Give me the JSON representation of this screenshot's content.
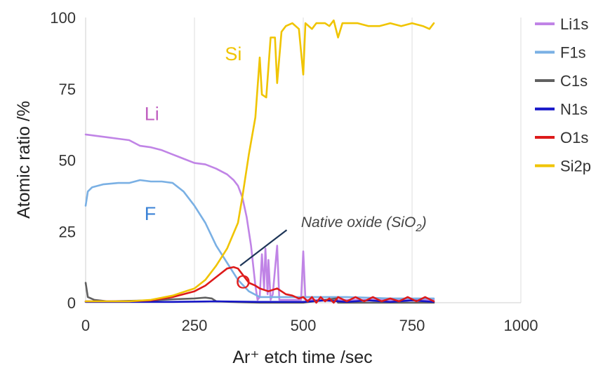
{
  "chart_data": {
    "type": "line",
    "title": "",
    "xlabel": "Ar⁺ etch time /sec",
    "ylabel": "Atomic ratio /%",
    "xlim": [
      0,
      1000
    ],
    "ylim": [
      0,
      100
    ],
    "xticks": [
      "0",
      "250",
      "500",
      "750",
      "1000"
    ],
    "yticks": [
      "0",
      "25",
      "50",
      "75",
      "100"
    ],
    "grid": "vertical",
    "legend_position": "right",
    "series": [
      {
        "name": "Li1s",
        "color": "#c084e6",
        "points": [
          [
            0,
            59
          ],
          [
            25,
            58.5
          ],
          [
            50,
            58
          ],
          [
            75,
            57.5
          ],
          [
            100,
            57
          ],
          [
            125,
            55
          ],
          [
            150,
            54.5
          ],
          [
            175,
            53.5
          ],
          [
            200,
            52
          ],
          [
            225,
            50.5
          ],
          [
            250,
            49
          ],
          [
            275,
            48.5
          ],
          [
            300,
            47
          ],
          [
            325,
            45
          ],
          [
            340,
            43
          ],
          [
            350,
            41
          ],
          [
            360,
            37
          ],
          [
            370,
            30
          ],
          [
            380,
            20
          ],
          [
            390,
            6
          ],
          [
            395,
            1
          ],
          [
            400,
            2
          ],
          [
            405,
            17
          ],
          [
            410,
            5
          ],
          [
            413,
            19
          ],
          [
            418,
            3
          ],
          [
            420,
            15
          ],
          [
            425,
            1
          ],
          [
            430,
            3
          ],
          [
            440,
            20
          ],
          [
            445,
            1
          ],
          [
            450,
            1
          ],
          [
            475,
            1
          ],
          [
            495,
            1
          ],
          [
            500,
            18
          ],
          [
            505,
            1
          ],
          [
            550,
            1
          ],
          [
            600,
            1
          ],
          [
            700,
            1
          ],
          [
            800,
            1
          ]
        ]
      },
      {
        "name": "F1s",
        "color": "#7ab0e4",
        "points": [
          [
            0,
            34
          ],
          [
            5,
            39
          ],
          [
            15,
            40.5
          ],
          [
            40,
            41.5
          ],
          [
            75,
            42
          ],
          [
            100,
            42
          ],
          [
            125,
            43
          ],
          [
            150,
            42.5
          ],
          [
            175,
            42.5
          ],
          [
            200,
            42
          ],
          [
            225,
            39
          ],
          [
            250,
            34
          ],
          [
            275,
            28
          ],
          [
            300,
            20
          ],
          [
            325,
            14
          ],
          [
            350,
            8
          ],
          [
            375,
            4
          ],
          [
            400,
            2
          ],
          [
            450,
            2
          ],
          [
            500,
            2
          ],
          [
            600,
            2
          ],
          [
            700,
            1.5
          ],
          [
            800,
            1.5
          ]
        ]
      },
      {
        "name": "C1s",
        "color": "#606060",
        "points": [
          [
            0,
            7
          ],
          [
            5,
            2
          ],
          [
            20,
            1
          ],
          [
            50,
            0.5
          ],
          [
            150,
            0.8
          ],
          [
            200,
            1.2
          ],
          [
            250,
            1.5
          ],
          [
            275,
            1.8
          ],
          [
            290,
            1.5
          ],
          [
            300,
            0.5
          ],
          [
            350,
            0.2
          ],
          [
            400,
            0
          ],
          [
            500,
            0
          ],
          [
            575,
            1.5
          ],
          [
            580,
            0
          ],
          [
            800,
            0
          ]
        ]
      },
      {
        "name": "N1s",
        "color": "#1515c8",
        "points": [
          [
            0,
            0.3
          ],
          [
            100,
            0.3
          ],
          [
            200,
            0.3
          ],
          [
            300,
            0.5
          ],
          [
            400,
            0.3
          ],
          [
            500,
            0.3
          ],
          [
            550,
            0.8
          ],
          [
            600,
            0.3
          ],
          [
            650,
            0.8
          ],
          [
            700,
            0.3
          ],
          [
            750,
            0.8
          ],
          [
            800,
            0.3
          ]
        ]
      },
      {
        "name": "O1s",
        "color": "#dd1a1a",
        "points": [
          [
            0,
            0.5
          ],
          [
            100,
            0.5
          ],
          [
            150,
            0.8
          ],
          [
            200,
            2
          ],
          [
            250,
            4
          ],
          [
            275,
            6
          ],
          [
            300,
            9
          ],
          [
            325,
            12
          ],
          [
            340,
            12.5
          ],
          [
            350,
            12
          ],
          [
            360,
            10
          ],
          [
            375,
            7
          ],
          [
            390,
            6
          ],
          [
            400,
            5
          ],
          [
            420,
            4
          ],
          [
            440,
            5
          ],
          [
            460,
            3
          ],
          [
            475,
            2.5
          ],
          [
            490,
            1.5
          ],
          [
            500,
            2
          ],
          [
            510,
            0.5
          ],
          [
            520,
            2
          ],
          [
            530,
            0
          ],
          [
            540,
            2
          ],
          [
            550,
            0.5
          ],
          [
            560,
            1.5
          ],
          [
            570,
            0
          ],
          [
            580,
            2
          ],
          [
            600,
            0.5
          ],
          [
            620,
            2
          ],
          [
            640,
            0.5
          ],
          [
            660,
            2
          ],
          [
            680,
            0.5
          ],
          [
            700,
            1.5
          ],
          [
            720,
            0.5
          ],
          [
            740,
            2
          ],
          [
            760,
            0.5
          ],
          [
            780,
            2
          ],
          [
            800,
            0.5
          ]
        ]
      },
      {
        "name": "Si2p",
        "color": "#f0c400",
        "points": [
          [
            0,
            0.5
          ],
          [
            100,
            0.5
          ],
          [
            150,
            1
          ],
          [
            200,
            2.5
          ],
          [
            250,
            5
          ],
          [
            275,
            8
          ],
          [
            300,
            13
          ],
          [
            325,
            19
          ],
          [
            350,
            28
          ],
          [
            360,
            37
          ],
          [
            375,
            52
          ],
          [
            390,
            65
          ],
          [
            400,
            86
          ],
          [
            405,
            73
          ],
          [
            415,
            72
          ],
          [
            425,
            93
          ],
          [
            435,
            93
          ],
          [
            440,
            77
          ],
          [
            450,
            95
          ],
          [
            460,
            97
          ],
          [
            475,
            98
          ],
          [
            490,
            96
          ],
          [
            500,
            80
          ],
          [
            505,
            98
          ],
          [
            520,
            96
          ],
          [
            530,
            98
          ],
          [
            550,
            98
          ],
          [
            560,
            97
          ],
          [
            570,
            99
          ],
          [
            580,
            93
          ],
          [
            590,
            98
          ],
          [
            625,
            98
          ],
          [
            650,
            97
          ],
          [
            675,
            97
          ],
          [
            700,
            98
          ],
          [
            725,
            97
          ],
          [
            750,
            98
          ],
          [
            775,
            97
          ],
          [
            790,
            96
          ],
          [
            800,
            98
          ]
        ]
      }
    ],
    "annotations": [
      {
        "text": "Li",
        "x": 135,
        "y": 64,
        "color": "#c060c0",
        "size": 27
      },
      {
        "text": "F",
        "x": 135,
        "y": 29,
        "color": "#3a82d6",
        "size": 27
      },
      {
        "text": "Si",
        "x": 320,
        "y": 85,
        "color": "#f0c400",
        "size": 27
      },
      {
        "text": "O",
        "x": 345,
        "y": 5,
        "color": "#e02020",
        "size": 27
      }
    ],
    "callout": {
      "text_main": "Native oxide (SiO",
      "text_sub": "2",
      "text_close": ")",
      "text_x": 495,
      "text_y": 26.5,
      "line_from": [
        355,
        13
      ],
      "line_to": [
        462,
        25.5
      ]
    }
  }
}
